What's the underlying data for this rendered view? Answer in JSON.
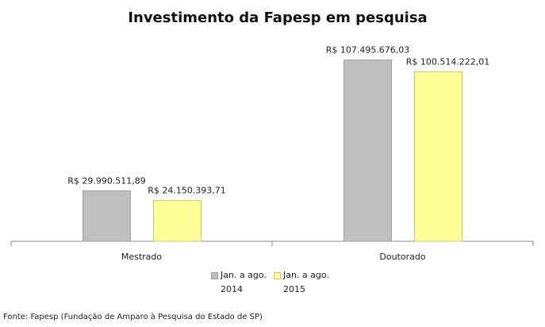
{
  "chart_data": {
    "type": "bar",
    "title": "Investimento da Fapesp em pesquisa",
    "categories": [
      "Mestrado",
      "Doutorado"
    ],
    "series": [
      {
        "name": "Jan. a ago. 2014",
        "color": "#bfbfbf",
        "values": [
          29990511.89,
          107495676.03
        ],
        "value_labels": [
          "R$ 29.990.511,89",
          "R$ 107.495.676,03"
        ]
      },
      {
        "name": "Jan. a ago. 2015",
        "color": "#ffff99",
        "values": [
          24150393.71,
          100514222.01
        ],
        "value_labels": [
          "R$ 24.150.393,71",
          "R$ 100.514.222,01"
        ]
      }
    ],
    "ylim": [
      0,
      120000000
    ],
    "grid": false,
    "legend": "bottom",
    "source": "Fonte: Fapesp (Fundação de Amparo à Pesquisa do Estado de SP)"
  }
}
